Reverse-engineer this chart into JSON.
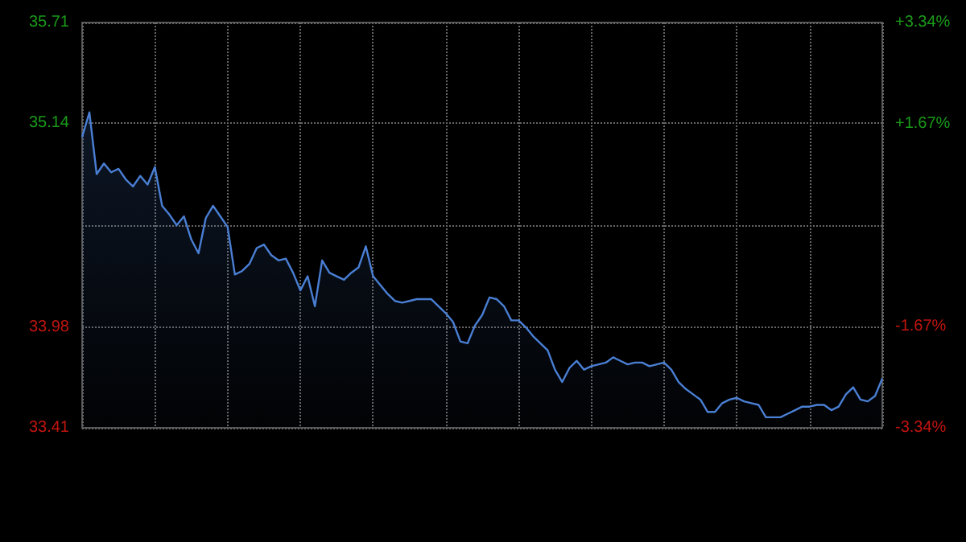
{
  "chart_data": {
    "type": "area",
    "categories": [
      null,
      null,
      null,
      null,
      null,
      null,
      null,
      null,
      null,
      null,
      null,
      null,
      null,
      null,
      null,
      null,
      null,
      null,
      null,
      null,
      null,
      null,
      null,
      null,
      null,
      null,
      null,
      null,
      null,
      null,
      null,
      null,
      null,
      null,
      null,
      null,
      null,
      null,
      null,
      null,
      null,
      null,
      null,
      null,
      null,
      null,
      null,
      null,
      null,
      null,
      null,
      null,
      null,
      null,
      null,
      null,
      null,
      null,
      null,
      null,
      null,
      null,
      null,
      null,
      null,
      null,
      null,
      null,
      null,
      null,
      null,
      null,
      null,
      null,
      null,
      null,
      null,
      null,
      null,
      null,
      null,
      null,
      null,
      null,
      null,
      null,
      null,
      null,
      null,
      null,
      null,
      null,
      null,
      null,
      null,
      null,
      null,
      null,
      null,
      null,
      null,
      null,
      null,
      null,
      null,
      null,
      null,
      null,
      null,
      null,
      null
    ],
    "series": [
      {
        "color": "#4a7fd4",
        "values": [
          35.06,
          35.2,
          34.85,
          34.91,
          34.86,
          34.88,
          34.82,
          34.78,
          34.84,
          34.79,
          34.89,
          34.67,
          34.62,
          34.56,
          34.61,
          34.48,
          34.4,
          34.6,
          34.67,
          34.61,
          34.55,
          34.28,
          34.3,
          34.34,
          34.43,
          34.45,
          34.39,
          34.36,
          34.37,
          34.29,
          34.19,
          34.27,
          34.1,
          34.36,
          34.29,
          34.27,
          34.25,
          34.29,
          34.32,
          34.44,
          34.27,
          34.22,
          34.17,
          34.13,
          34.12,
          34.13,
          34.14,
          34.14,
          34.14,
          34.1,
          34.06,
          34.01,
          33.9,
          33.89,
          33.99,
          34.05,
          34.15,
          34.14,
          34.1,
          34.02,
          34.02,
          33.98,
          33.93,
          33.89,
          33.85,
          33.74,
          33.67,
          33.75,
          33.79,
          33.74,
          33.76,
          33.77,
          33.78,
          33.81,
          33.79,
          33.77,
          33.78,
          33.78,
          33.76,
          33.77,
          33.78,
          33.74,
          33.67,
          33.63,
          33.6,
          33.57,
          33.5,
          33.5,
          33.55,
          33.57,
          33.58,
          33.56,
          33.55,
          33.54,
          33.47,
          33.47,
          33.47,
          33.49,
          33.51,
          33.53,
          33.53,
          33.54,
          33.54,
          33.51,
          33.53,
          33.6,
          33.64,
          33.57,
          33.56,
          33.59,
          33.69
        ]
      }
    ],
    "ylim": [
      33.41,
      35.71
    ],
    "yticks": [
      33.41,
      33.98,
      {
        "value": 34.56,
        "label": null
      },
      35.14,
      35.71
    ],
    "y2lim": [
      -3.34,
      3.34
    ],
    "y2ticks": [
      {
        "value": -3.34,
        "label": "-3.34%"
      },
      {
        "value": -1.67,
        "label": "-1.67%"
      },
      {
        "value": 0,
        "label": null
      },
      {
        "value": 1.67,
        "label": "+1.67%"
      },
      {
        "value": 3.34,
        "label": "+3.34%"
      }
    ],
    "grid": true,
    "marker": "none",
    "line_style": "solid"
  }
}
